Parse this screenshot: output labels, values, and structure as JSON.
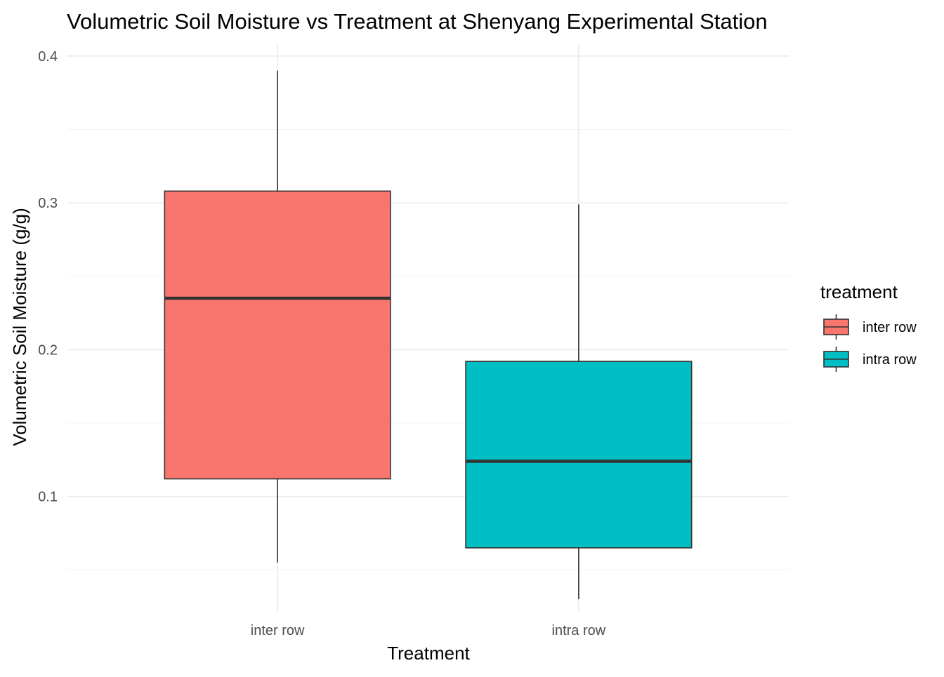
{
  "chart_data": {
    "type": "boxplot",
    "title": "Volumetric Soil Moisture vs Treatment at Shenyang Experimental Station",
    "xlabel": "Treatment",
    "ylabel": "Volumetric Soil Moisture (g/g)",
    "ylim": [
      0.021,
      0.409
    ],
    "y_ticks": [
      0.1,
      0.2,
      0.3,
      0.4
    ],
    "y_tick_labels": [
      "0.1",
      "0.2",
      "0.3",
      "0.4"
    ],
    "y_minor_ticks": [
      0.05,
      0.15,
      0.25,
      0.35
    ],
    "grid": true,
    "legend": {
      "title": "treatment",
      "position": "right"
    },
    "categories": [
      "inter row",
      "intra row"
    ],
    "series": [
      {
        "name": "inter row",
        "color": "#F8766D",
        "whisker_low": 0.055,
        "q1": 0.112,
        "median": 0.235,
        "q3": 0.308,
        "whisker_high": 0.39
      },
      {
        "name": "intra row",
        "color": "#00BFC4",
        "whisker_low": 0.03,
        "q1": 0.065,
        "median": 0.124,
        "q3": 0.192,
        "whisker_high": 0.299
      }
    ]
  }
}
